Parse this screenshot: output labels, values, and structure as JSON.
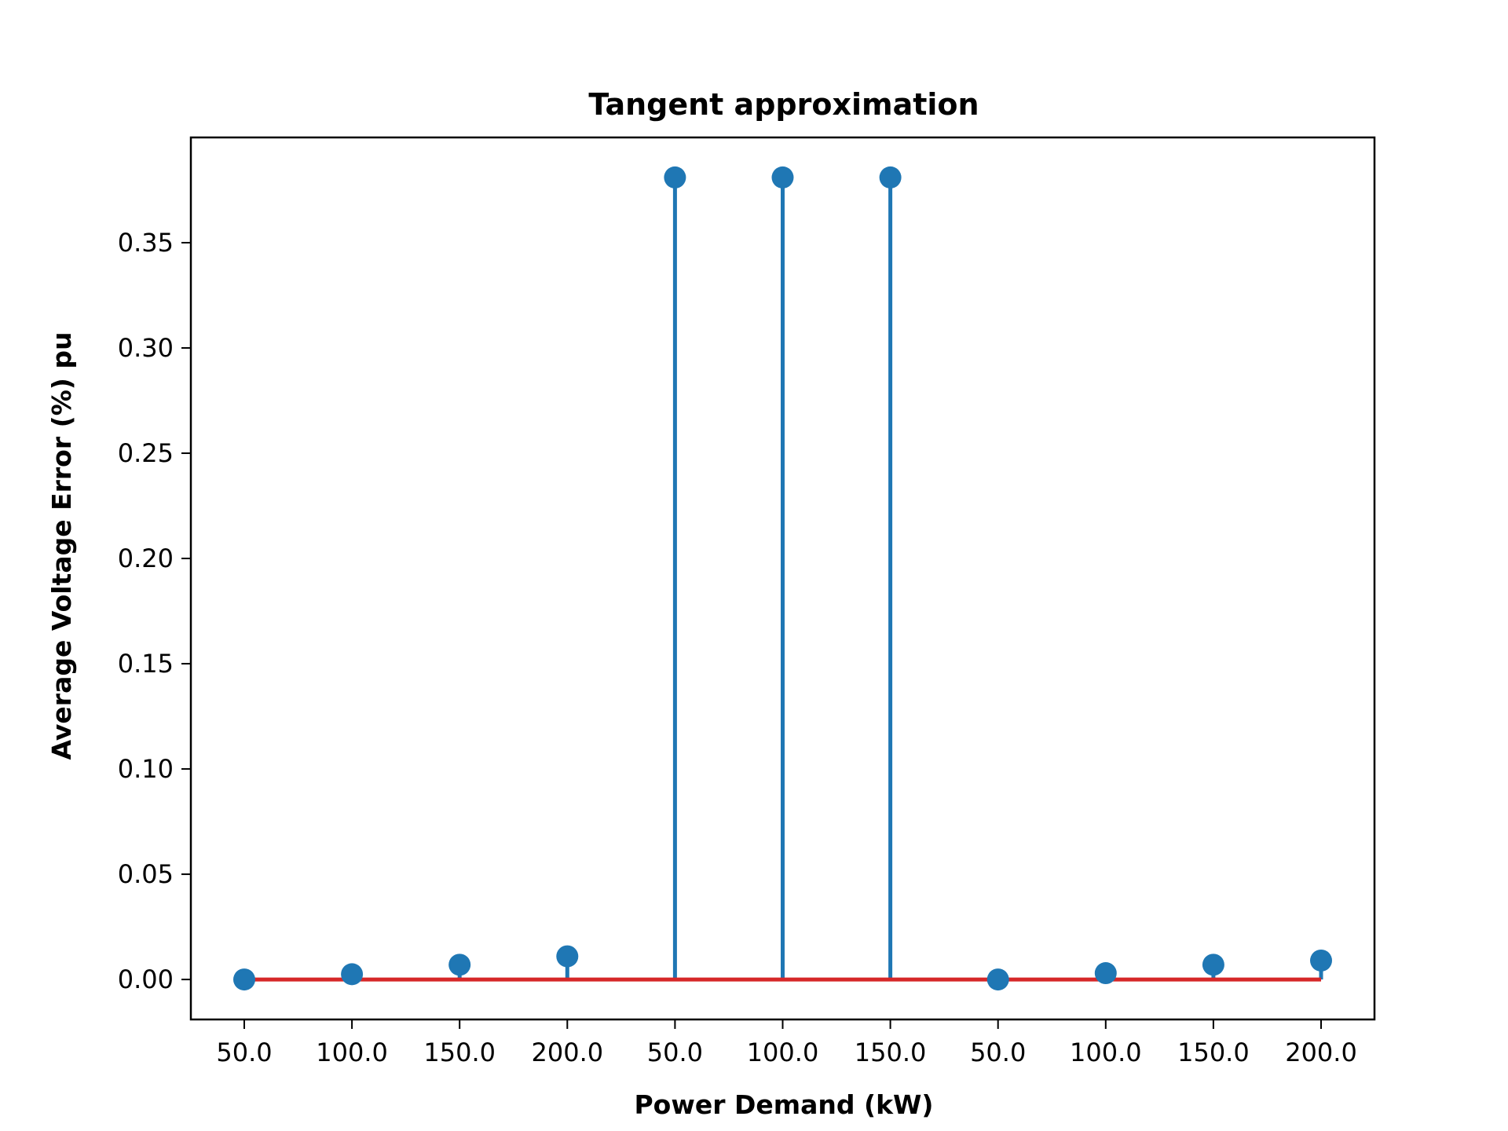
{
  "chart_data": {
    "type": "stem",
    "title": "Tangent approximation",
    "xlabel": "Power Demand (kW)",
    "ylabel": "Average Voltage Error (%) pu",
    "categories": [
      "50.0",
      "100.0",
      "150.0",
      "200.0",
      "50.0",
      "100.0",
      "150.0",
      "50.0",
      "100.0",
      "150.0",
      "200.0"
    ],
    "values": [
      0.0,
      0.0025,
      0.007,
      0.011,
      0.381,
      0.381,
      0.381,
      0.0,
      0.003,
      0.007,
      0.009
    ],
    "ylim": [
      -0.019,
      0.4
    ],
    "yticks": [
      "0.00",
      "0.05",
      "0.10",
      "0.15",
      "0.20",
      "0.25",
      "0.30",
      "0.35"
    ],
    "baseline": 0,
    "grid": false,
    "colors": {
      "stem": "#1f77b4",
      "baseline": "#d62728",
      "axes": "#000000"
    }
  }
}
